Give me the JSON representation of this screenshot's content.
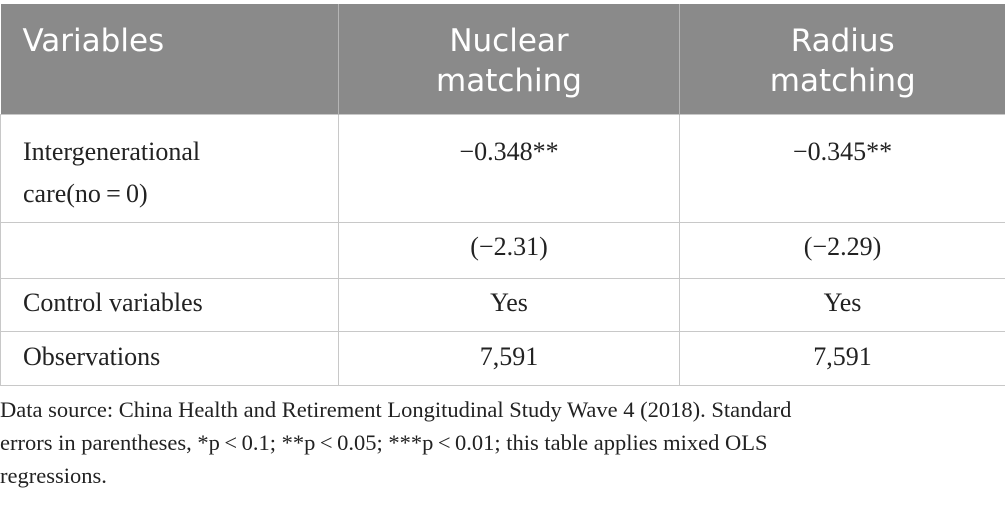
{
  "table": {
    "headers": {
      "variables": "Variables",
      "col1_line1": "Nuclear",
      "col1_line2": "matching",
      "col2_line1": "Radius",
      "col2_line2": "matching"
    },
    "rows": [
      {
        "label_line1": "Intergenerational",
        "label_line2": "care(no = 0)",
        "nuclear": "−0.348**",
        "radius": "−0.345**"
      },
      {
        "label": "",
        "nuclear": "(−2.31)",
        "radius": "(−2.29)"
      },
      {
        "label": "Control variables",
        "nuclear": "Yes",
        "radius": "Yes"
      },
      {
        "label": "Observations",
        "nuclear": "7,591",
        "radius": "7,591"
      }
    ]
  },
  "note": {
    "line1": "Data source: China Health and Retirement Longitudinal Study Wave 4 (2018). Standard",
    "line2": "errors in parentheses, *p < 0.1; **p < 0.05; ***p < 0.01; this table applies mixed OLS",
    "line3": "regressions."
  }
}
